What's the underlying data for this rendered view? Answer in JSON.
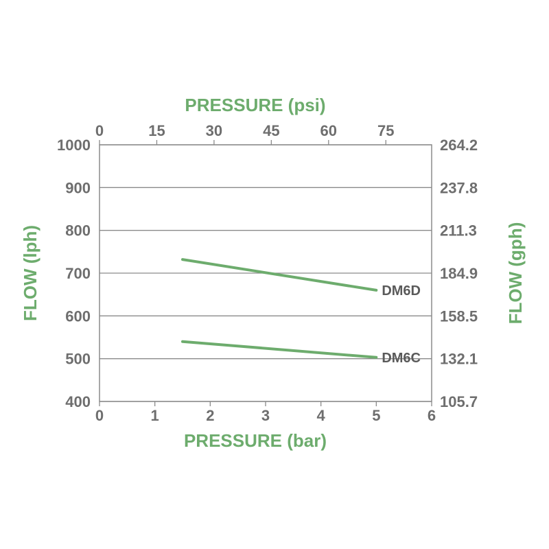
{
  "chart_data": {
    "type": "line",
    "colors": {
      "series": "#6dac6d",
      "axis_title": "#6dac6d",
      "ticks": "#6e6e6e",
      "grid": "#8a8a8a"
    },
    "x_bottom": {
      "label": "PRESSURE (bar)",
      "range": [
        0,
        6
      ],
      "ticks": [
        "0",
        "1",
        "2",
        "3",
        "4",
        "5",
        "6"
      ]
    },
    "x_top": {
      "label": "PRESSURE (psi)",
      "range": [
        0,
        87
      ],
      "ticks": [
        {
          "value": 0,
          "label": "0"
        },
        {
          "value": 15,
          "label": "15"
        },
        {
          "value": 30,
          "label": "30"
        },
        {
          "value": 45,
          "label": "45"
        },
        {
          "value": 60,
          "label": "60"
        },
        {
          "value": 75,
          "label": "75"
        }
      ]
    },
    "y_left": {
      "label": "FLOW (lph)",
      "range": [
        400,
        1000
      ],
      "ticks": [
        "400",
        "500",
        "600",
        "700",
        "800",
        "900",
        "1000"
      ]
    },
    "y_right": {
      "label": "FLOW (gph)",
      "ticks": [
        "105.7",
        "132.1",
        "158.5",
        "184.9",
        "211.3",
        "237.8",
        "264.2"
      ]
    },
    "grid": "horizontal",
    "series": [
      {
        "name": "DM6D",
        "x": [
          1.5,
          5.0
        ],
        "y": [
          732,
          660
        ]
      },
      {
        "name": "DM6C",
        "x": [
          1.5,
          5.0
        ],
        "y": [
          540,
          503
        ]
      }
    ]
  }
}
